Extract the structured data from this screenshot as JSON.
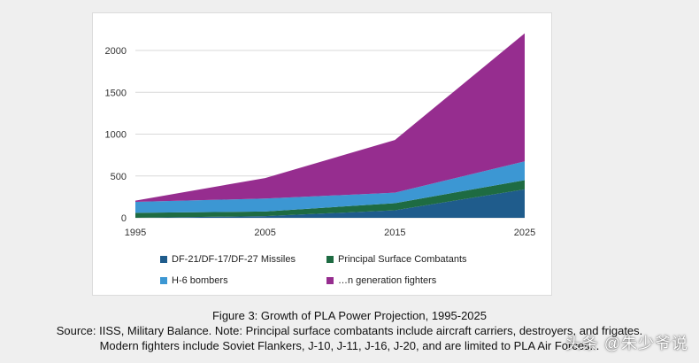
{
  "chart_data": {
    "type": "area",
    "stacked": true,
    "x": [
      1995,
      2005,
      2015,
      2025
    ],
    "ylim": [
      0,
      2000
    ],
    "yticks": [
      0,
      500,
      1000,
      1500,
      2000
    ],
    "grid": true,
    "legend_position": "bottom",
    "series": [
      {
        "name": "DF-21/DF-17/DF-27 Missiles",
        "values": [
          0,
          20,
          90,
          340
        ],
        "color": "#1f5c8c"
      },
      {
        "name": "Principal Surface Combatants",
        "values": [
          60,
          55,
          85,
          110
        ],
        "color": "#1e6b42"
      },
      {
        "name": "H-6 bombers",
        "values": [
          130,
          155,
          125,
          225
        ],
        "color": "#3c97d3"
      },
      {
        "name": "…n generation fighters",
        "values": [
          15,
          245,
          630,
          1530
        ],
        "color": "#962d8f"
      }
    ]
  },
  "caption": {
    "line1": "Figure 3: Growth of PLA Power Projection, 1995-2025",
    "line2": "Source: IISS, Military Balance. Note: Principal surface combatants include aircraft carriers, destroyers, and frigates.",
    "line3": "Modern fighters include Soviet Flankers, J-10, J-11, J-16, J-20, and are limited to PLA Air Forces..."
  },
  "watermark": "头条 @朱少爷说"
}
